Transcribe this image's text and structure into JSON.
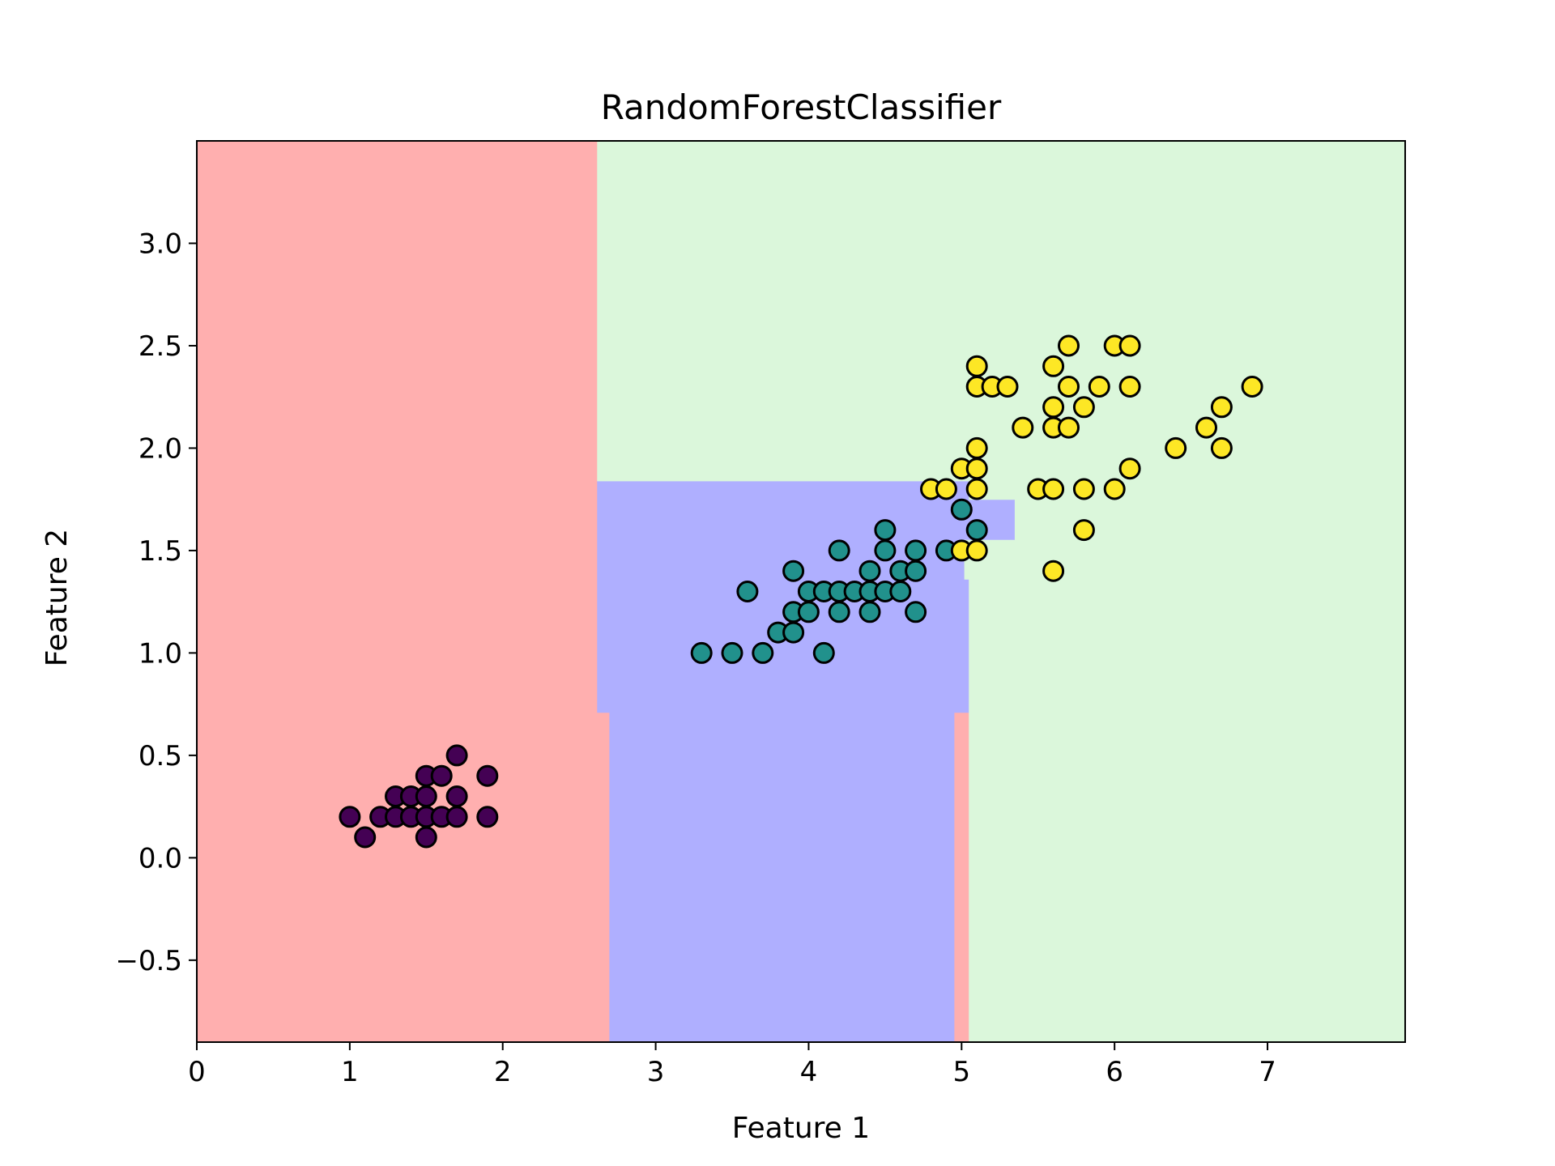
{
  "chart_data": {
    "type": "scatter",
    "title": "RandomForestClassifier",
    "xlabel": "Feature 1",
    "ylabel": "Feature 2",
    "xlim": [
      0,
      7.9
    ],
    "ylim": [
      -0.9,
      3.5
    ],
    "xticks": [
      0,
      1,
      2,
      3,
      4,
      5,
      6,
      7
    ],
    "xtick_labels": [
      "0",
      "1",
      "2",
      "3",
      "4",
      "5",
      "6",
      "7"
    ],
    "yticks": [
      -0.5,
      0.0,
      0.5,
      1.0,
      1.5,
      2.0,
      2.5,
      3.0
    ],
    "ytick_labels": [
      "−0.5",
      "0.0",
      "0.5",
      "1.0",
      "1.5",
      "2.0",
      "2.5",
      "3.0"
    ],
    "grid": false,
    "legend": "none",
    "decision_regions": [
      {
        "class": 0,
        "color": "#FFAFAF",
        "polygons": [
          [
            [
              0,
              -0.9
            ],
            [
              2.7,
              -0.9
            ],
            [
              2.7,
              0.71
            ],
            [
              2.62,
              0.71
            ],
            [
              2.62,
              3.5
            ],
            [
              0,
              3.5
            ]
          ],
          [
            [
              4.95,
              -0.9
            ],
            [
              5.05,
              -0.9
            ],
            [
              5.05,
              0.71
            ],
            [
              4.95,
              0.71
            ]
          ]
        ]
      },
      {
        "class": 1,
        "color": "#AFAFFF",
        "polygons": [
          [
            [
              2.7,
              -0.9
            ],
            [
              4.95,
              -0.9
            ],
            [
              4.95,
              0.71
            ],
            [
              5.05,
              0.71
            ],
            [
              5.05,
              1.36
            ],
            [
              5.02,
              1.36
            ],
            [
              5.02,
              1.55
            ],
            [
              5.35,
              1.55
            ],
            [
              5.35,
              1.75
            ],
            [
              5.05,
              1.75
            ],
            [
              5.05,
              1.84
            ],
            [
              2.62,
              1.84
            ],
            [
              2.62,
              0.71
            ],
            [
              2.7,
              0.71
            ]
          ]
        ]
      },
      {
        "class": 2,
        "color": "#DBF7DB",
        "polygons": [
          [
            [
              5.05,
              -0.9
            ],
            [
              7.9,
              -0.9
            ],
            [
              7.9,
              3.5
            ],
            [
              2.62,
              3.5
            ],
            [
              2.62,
              1.84
            ],
            [
              5.05,
              1.84
            ],
            [
              5.05,
              1.75
            ],
            [
              5.35,
              1.75
            ],
            [
              5.35,
              1.55
            ],
            [
              5.02,
              1.55
            ],
            [
              5.02,
              1.36
            ],
            [
              5.05,
              1.36
            ]
          ]
        ]
      }
    ],
    "series": [
      {
        "class": 0,
        "color": "#440154",
        "points": [
          [
            1.0,
            0.2
          ],
          [
            1.1,
            0.1
          ],
          [
            1.2,
            0.2
          ],
          [
            1.3,
            0.2
          ],
          [
            1.3,
            0.3
          ],
          [
            1.4,
            0.2
          ],
          [
            1.4,
            0.3
          ],
          [
            1.5,
            0.1
          ],
          [
            1.5,
            0.2
          ],
          [
            1.5,
            0.3
          ],
          [
            1.5,
            0.4
          ],
          [
            1.6,
            0.2
          ],
          [
            1.6,
            0.4
          ],
          [
            1.7,
            0.2
          ],
          [
            1.7,
            0.3
          ],
          [
            1.7,
            0.5
          ],
          [
            1.9,
            0.2
          ],
          [
            1.9,
            0.4
          ]
        ]
      },
      {
        "class": 1,
        "color": "#21918C",
        "points": [
          [
            3.3,
            1.0
          ],
          [
            3.5,
            1.0
          ],
          [
            3.6,
            1.3
          ],
          [
            3.7,
            1.0
          ],
          [
            3.8,
            1.1
          ],
          [
            3.9,
            1.1
          ],
          [
            3.9,
            1.2
          ],
          [
            3.9,
            1.4
          ],
          [
            4.0,
            1.2
          ],
          [
            4.0,
            1.3
          ],
          [
            4.1,
            1.0
          ],
          [
            4.1,
            1.3
          ],
          [
            4.2,
            1.2
          ],
          [
            4.2,
            1.3
          ],
          [
            4.2,
            1.5
          ],
          [
            4.3,
            1.3
          ],
          [
            4.4,
            1.2
          ],
          [
            4.4,
            1.3
          ],
          [
            4.4,
            1.4
          ],
          [
            4.5,
            1.3
          ],
          [
            4.5,
            1.5
          ],
          [
            4.5,
            1.6
          ],
          [
            4.6,
            1.3
          ],
          [
            4.6,
            1.4
          ],
          [
            4.7,
            1.2
          ],
          [
            4.7,
            1.4
          ],
          [
            4.7,
            1.5
          ],
          [
            4.9,
            1.5
          ],
          [
            5.0,
            1.7
          ],
          [
            5.1,
            1.6
          ]
        ]
      },
      {
        "class": 2,
        "color": "#FDE725",
        "points": [
          [
            4.8,
            1.8
          ],
          [
            4.9,
            1.8
          ],
          [
            5.0,
            1.5
          ],
          [
            5.0,
            1.9
          ],
          [
            5.1,
            1.5
          ],
          [
            5.1,
            1.8
          ],
          [
            5.1,
            1.9
          ],
          [
            5.1,
            2.0
          ],
          [
            5.1,
            2.3
          ],
          [
            5.1,
            2.4
          ],
          [
            5.2,
            2.3
          ],
          [
            5.3,
            2.3
          ],
          [
            5.4,
            2.1
          ],
          [
            5.5,
            1.8
          ],
          [
            5.6,
            1.4
          ],
          [
            5.6,
            1.8
          ],
          [
            5.6,
            2.1
          ],
          [
            5.6,
            2.2
          ],
          [
            5.6,
            2.4
          ],
          [
            5.7,
            2.1
          ],
          [
            5.7,
            2.3
          ],
          [
            5.7,
            2.5
          ],
          [
            5.8,
            1.6
          ],
          [
            5.8,
            1.8
          ],
          [
            5.8,
            2.2
          ],
          [
            5.9,
            2.3
          ],
          [
            6.0,
            1.8
          ],
          [
            6.0,
            2.5
          ],
          [
            6.1,
            1.9
          ],
          [
            6.1,
            2.3
          ],
          [
            6.1,
            2.5
          ],
          [
            6.4,
            2.0
          ],
          [
            6.6,
            2.1
          ],
          [
            6.7,
            2.0
          ],
          [
            6.7,
            2.2
          ],
          [
            6.9,
            2.3
          ]
        ]
      }
    ]
  }
}
